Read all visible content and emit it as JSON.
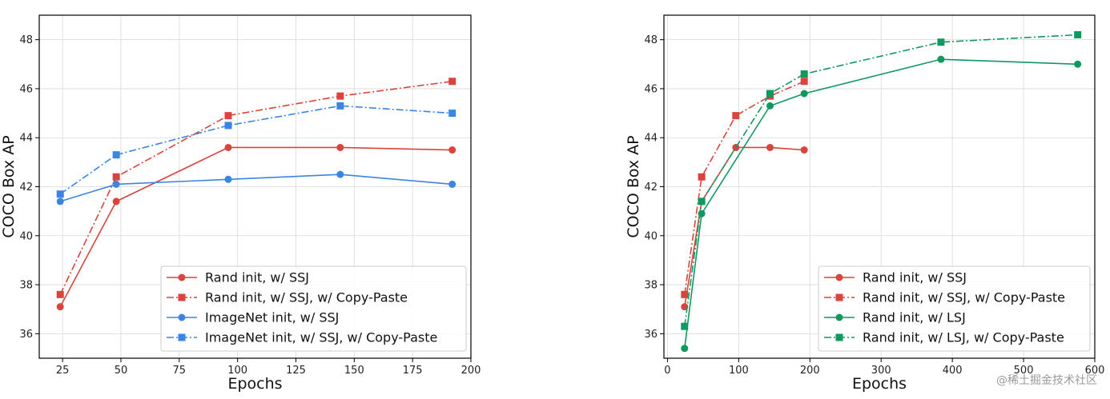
{
  "watermark": "@稀土掘金技术社区",
  "colors": {
    "red": "#d9453c",
    "blue": "#3a85e2",
    "green": "#0f9960",
    "grid": "#d9d9d9"
  },
  "chart_data": [
    {
      "type": "line",
      "xlabel": "Epochs",
      "ylabel": "COCO Box AP",
      "xlim": [
        15,
        200
      ],
      "ylim": [
        35,
        49
      ],
      "xticks": [
        25,
        50,
        75,
        100,
        125,
        150,
        175,
        200
      ],
      "yticks": [
        36,
        38,
        40,
        42,
        44,
        46,
        48
      ],
      "grid": true,
      "legend_position": "lower-right",
      "series": [
        {
          "name": "Rand init, w/ SSJ",
          "color": "red",
          "style": "solid",
          "marker": "circle",
          "x": [
            24,
            48,
            96,
            144,
            192
          ],
          "y": [
            37.1,
            41.4,
            43.6,
            43.6,
            43.5
          ]
        },
        {
          "name": "Rand init, w/ SSJ, w/ Copy-Paste",
          "color": "red",
          "style": "dashdot",
          "marker": "square",
          "x": [
            24,
            48,
            96,
            144,
            192
          ],
          "y": [
            37.6,
            42.4,
            44.9,
            45.7,
            46.3
          ]
        },
        {
          "name": "ImageNet init, w/ SSJ",
          "color": "blue",
          "style": "solid",
          "marker": "circle",
          "x": [
            24,
            48,
            96,
            144,
            192
          ],
          "y": [
            41.4,
            42.1,
            42.3,
            42.5,
            42.1
          ]
        },
        {
          "name": "ImageNet init, w/ SSJ, w/ Copy-Paste",
          "color": "blue",
          "style": "dashdot",
          "marker": "square",
          "x": [
            24,
            48,
            96,
            144,
            192
          ],
          "y": [
            41.7,
            43.3,
            44.5,
            45.3,
            45.0
          ]
        }
      ]
    },
    {
      "type": "line",
      "xlabel": "Epochs",
      "ylabel": "COCO Box AP",
      "xlim": [
        -5,
        600
      ],
      "ylim": [
        35,
        49
      ],
      "xticks": [
        0,
        100,
        200,
        300,
        400,
        500,
        600
      ],
      "yticks": [
        36,
        38,
        40,
        42,
        44,
        46,
        48
      ],
      "grid": true,
      "legend_position": "lower-right",
      "series": [
        {
          "name": "Rand init, w/ SSJ",
          "color": "red",
          "style": "solid",
          "marker": "circle",
          "x": [
            24,
            48,
            96,
            144,
            192
          ],
          "y": [
            37.1,
            41.4,
            43.6,
            43.6,
            43.5
          ]
        },
        {
          "name": "Rand init, w/ SSJ, w/ Copy-Paste",
          "color": "red",
          "style": "dashdot",
          "marker": "square",
          "x": [
            24,
            48,
            96,
            144,
            192
          ],
          "y": [
            37.6,
            42.4,
            44.9,
            45.7,
            46.3
          ]
        },
        {
          "name": "Rand init, w/ LSJ",
          "color": "green",
          "style": "solid",
          "marker": "circle",
          "x": [
            24,
            48,
            144,
            192,
            384,
            576
          ],
          "y": [
            35.4,
            40.9,
            45.3,
            45.8,
            47.2,
            47.0
          ]
        },
        {
          "name": "Rand init, w/ LSJ, w/ Copy-Paste",
          "color": "green",
          "style": "dashdot",
          "marker": "square",
          "x": [
            24,
            48,
            144,
            192,
            384,
            576
          ],
          "y": [
            36.3,
            41.4,
            45.8,
            46.6,
            47.9,
            48.2
          ]
        }
      ]
    }
  ]
}
